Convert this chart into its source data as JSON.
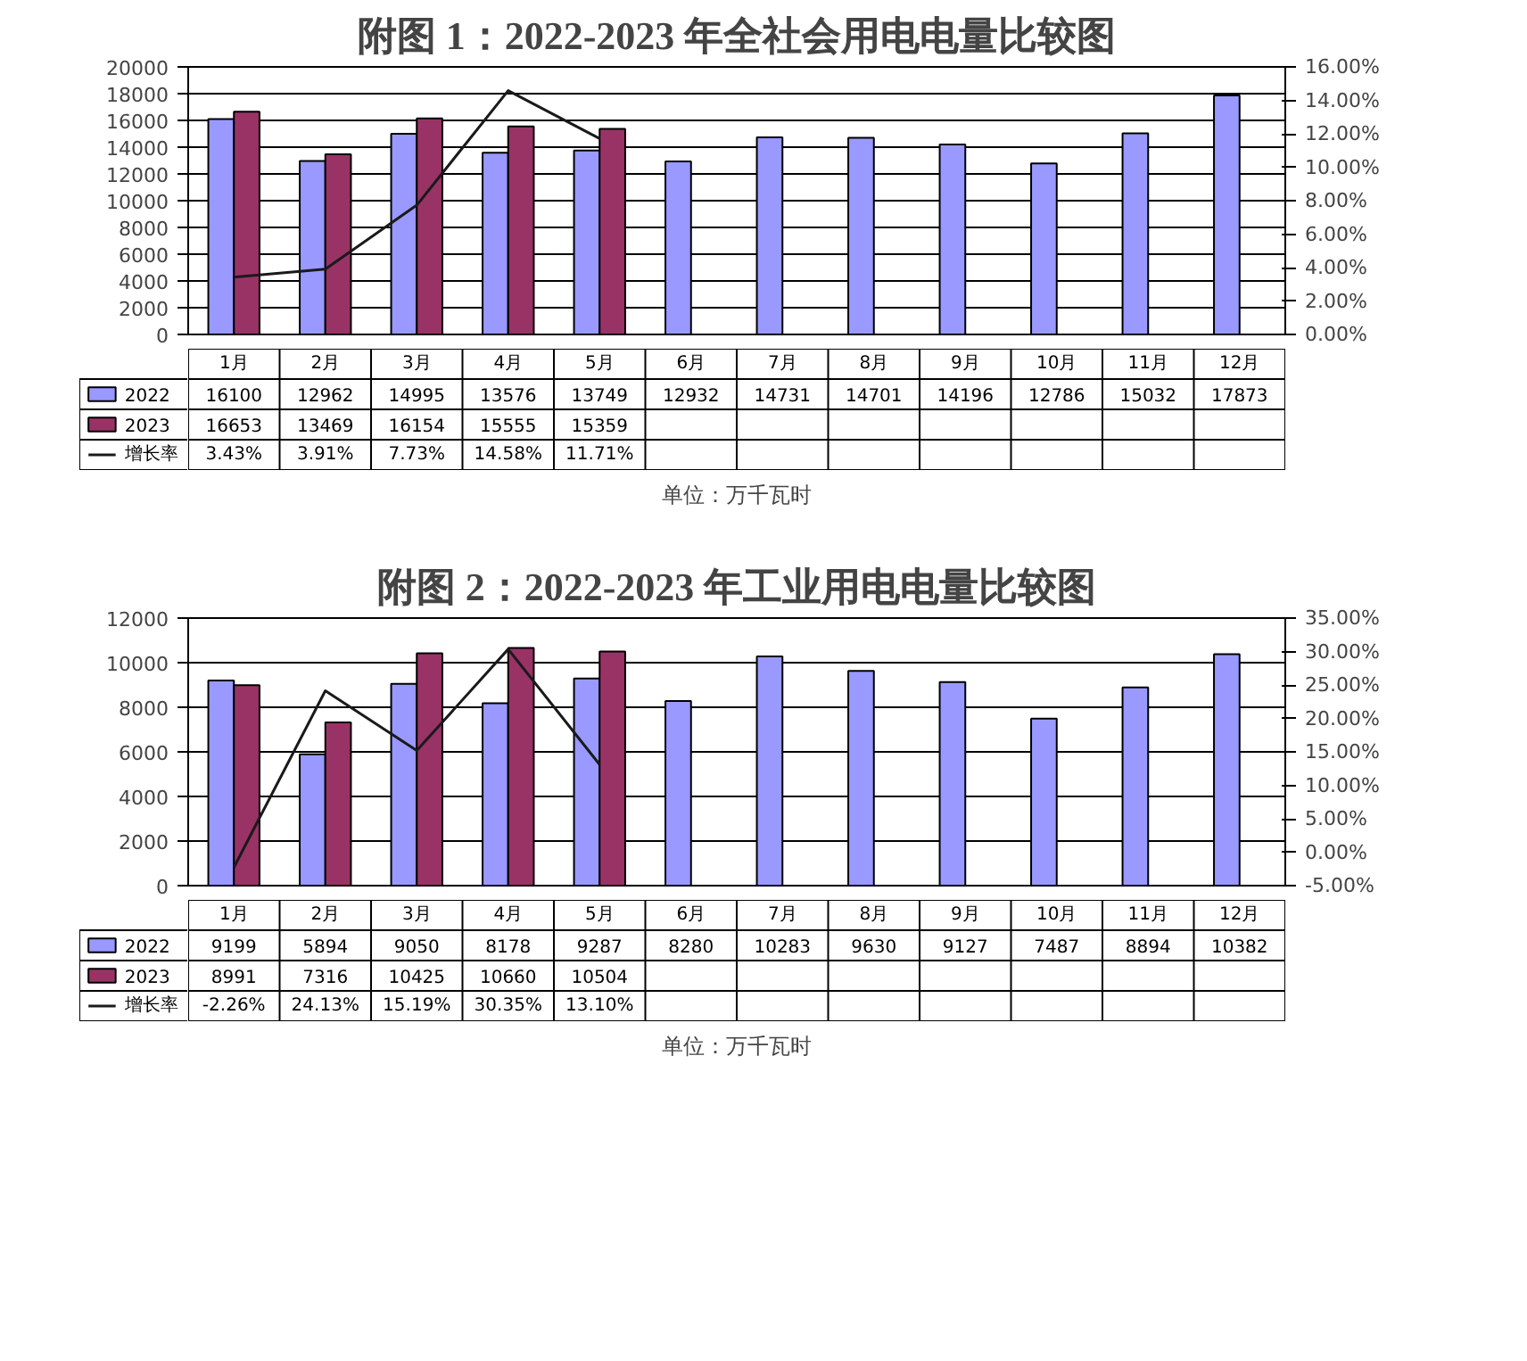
{
  "chart_data": [
    {
      "type": "bar",
      "title": "附图 1：2022-2023 年全社会用电电量比较图",
      "annotations": [
        "单位：万千瓦时"
      ],
      "categories": [
        "1月",
        "2月",
        "3月",
        "4月",
        "5月",
        "6月",
        "7月",
        "8月",
        "9月",
        "10月",
        "11月",
        "12月"
      ],
      "series": [
        {
          "name": "2022",
          "color": "#9999ff",
          "values": [
            16100,
            12962,
            14995,
            13576,
            13749,
            12932,
            14731,
            14701,
            14196,
            12786,
            15032,
            17873
          ]
        },
        {
          "name": "2023",
          "color": "#993366",
          "values": [
            16653,
            13469,
            16154,
            15555,
            15359,
            null,
            null,
            null,
            null,
            null,
            null,
            null
          ]
        },
        {
          "name": "增长率",
          "type": "line",
          "axis": "y2",
          "color": "#1a1a1a",
          "values": [
            3.43,
            3.91,
            7.73,
            14.58,
            11.71,
            null,
            null,
            null,
            null,
            null,
            null,
            null
          ],
          "value_labels": [
            "3.43%",
            "3.91%",
            "7.73%",
            "14.58%",
            "11.71%",
            null,
            null,
            null,
            null,
            null,
            null,
            null
          ]
        }
      ],
      "ylim": [
        0,
        20000
      ],
      "yticks": [
        0,
        2000,
        4000,
        6000,
        8000,
        10000,
        12000,
        14000,
        16000,
        18000,
        20000
      ],
      "y2lim": [
        0,
        16
      ],
      "y2ticks": [
        {
          "value": 0,
          "label": "0.00%"
        },
        {
          "value": 2,
          "label": "2.00%"
        },
        {
          "value": 4,
          "label": "4.00%"
        },
        {
          "value": 6,
          "label": "6.00%"
        },
        {
          "value": 8,
          "label": "8.00%"
        },
        {
          "value": 10,
          "label": "10.00%"
        },
        {
          "value": 12,
          "label": "12.00%"
        },
        {
          "value": 14,
          "label": "14.00%"
        },
        {
          "value": 16,
          "label": "16.00%"
        }
      ],
      "grid": "y",
      "legend": "bottom",
      "data_labels": true
    },
    {
      "type": "bar",
      "title": "附图 2：2022-2023 年工业用电电量比较图",
      "annotations": [
        "单位：万千瓦时"
      ],
      "categories": [
        "1月",
        "2月",
        "3月",
        "4月",
        "5月",
        "6月",
        "7月",
        "8月",
        "9月",
        "10月",
        "11月",
        "12月"
      ],
      "series": [
        {
          "name": "2022",
          "color": "#9999ff",
          "values": [
            9199,
            5894,
            9050,
            8178,
            9287,
            8280,
            10283,
            9630,
            9127,
            7487,
            8894,
            10382
          ]
        },
        {
          "name": "2023",
          "color": "#993366",
          "values": [
            8991,
            7316,
            10425,
            10660,
            10504,
            null,
            null,
            null,
            null,
            null,
            null,
            null
          ]
        },
        {
          "name": "增长率",
          "type": "line",
          "axis": "y2",
          "color": "#1a1a1a",
          "values": [
            -2.26,
            24.13,
            15.19,
            30.35,
            13.1,
            null,
            null,
            null,
            null,
            null,
            null,
            null
          ],
          "value_labels": [
            "-2.26%",
            "24.13%",
            "15.19%",
            "30.35%",
            "13.10%",
            null,
            null,
            null,
            null,
            null,
            null,
            null
          ]
        }
      ],
      "ylim": [
        0,
        12000
      ],
      "yticks": [
        0,
        2000,
        4000,
        6000,
        8000,
        10000,
        12000
      ],
      "y2lim": [
        -5,
        35
      ],
      "y2ticks": [
        {
          "value": -5,
          "label": "-5.00%"
        },
        {
          "value": 0,
          "label": "0.00%"
        },
        {
          "value": 5,
          "label": "5.00%"
        },
        {
          "value": 10,
          "label": "10.00%"
        },
        {
          "value": 15,
          "label": "15.00%"
        },
        {
          "value": 20,
          "label": "20.00%"
        },
        {
          "value": 25,
          "label": "25.00%"
        },
        {
          "value": 30,
          "label": "30.00%"
        },
        {
          "value": 35,
          "label": "35.00%"
        }
      ],
      "grid": "y",
      "legend": "bottom",
      "data_labels": true
    }
  ]
}
